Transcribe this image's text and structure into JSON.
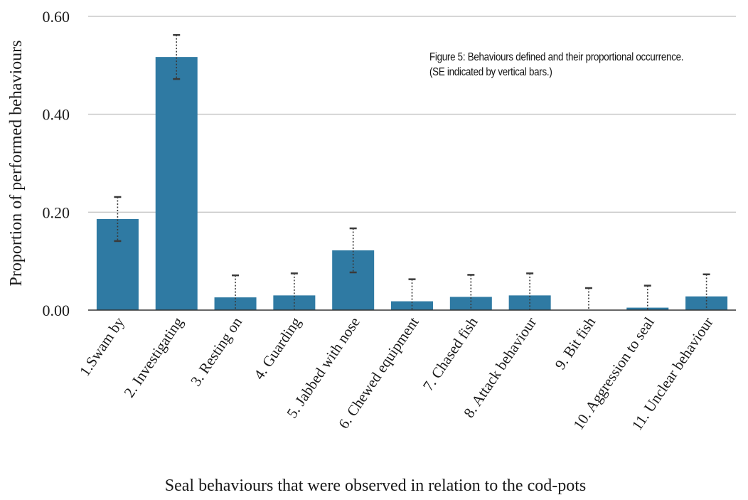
{
  "caption": "Figure 5: Behaviours defined and their proportional occurrence. (SE indicated by vertical bars.)",
  "chart_data": {
    "type": "bar",
    "title": "",
    "xlabel": "Seal behaviours that were observed in relation to the cod-pots",
    "ylabel": "Proportion of performed behaviours",
    "ylim": [
      0,
      0.6
    ],
    "yticks": [
      "0.00",
      "0.20",
      "0.40",
      "0.60"
    ],
    "grid": true,
    "categories": [
      "1.Swam by",
      "2. Investigating",
      "3. Resting on",
      "4. Guarding",
      "5. Jabbed with nose",
      "6. Chewed equipment",
      "7. Chased fish",
      "8. Attack behaviour",
      "9. Bit fish",
      "10. Aggression to seal",
      "11. Unclear behaviour"
    ],
    "values": [
      0.186,
      0.517,
      0.026,
      0.03,
      0.122,
      0.018,
      0.027,
      0.03,
      0.0,
      0.005,
      0.028
    ],
    "error": [
      0.045,
      0.045,
      0.045,
      0.045,
      0.045,
      0.045,
      0.045,
      0.045,
      0.045,
      0.045,
      0.045
    ],
    "bar_color": "#2f7aa3",
    "grid_color": "#c8c8c8",
    "error_color": "#3a3a3a"
  }
}
